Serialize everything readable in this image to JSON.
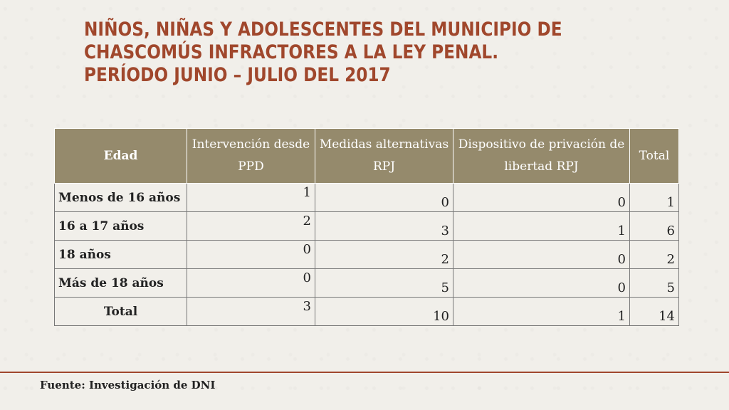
{
  "title": {
    "line1": "NIÑOS, NIÑAS Y ADOLESCENTES DEL MUNICIPIO DE",
    "line2": "CHASCOMÚS INFRACTORES A LA LEY PENAL.",
    "line3": "PERÍODO JUNIO – JULIO DEL 2017"
  },
  "table": {
    "headers": [
      "Edad",
      "Intervención desde PPD",
      "Medidas alternativas RPJ",
      "Dispositivo de privación de libertad RPJ",
      "Total"
    ],
    "rows": [
      {
        "label": "Menos de 16 años",
        "values": [
          "1",
          "0",
          "0",
          "1"
        ]
      },
      {
        "label": "16 a 17 años",
        "values": [
          "2",
          "3",
          "1",
          "6"
        ]
      },
      {
        "label": "18 años",
        "values": [
          "0",
          "2",
          "0",
          "2"
        ]
      },
      {
        "label": "Más de 18 años",
        "values": [
          "0",
          "5",
          "0",
          "5"
        ]
      },
      {
        "label": "Total",
        "values": [
          "3",
          "10",
          "1",
          "14"
        ]
      }
    ]
  },
  "source": "Fuente: Investigación de DNI",
  "colors": {
    "title": "#a0472c",
    "header_bg": "#958a6c",
    "background": "#f1efea"
  }
}
